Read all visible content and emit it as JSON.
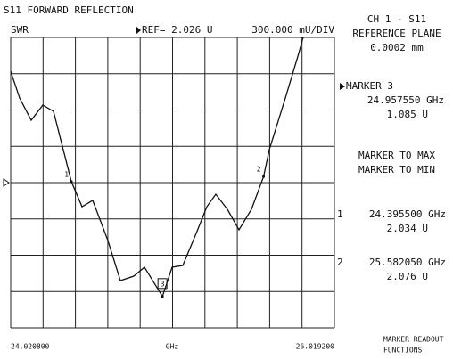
{
  "chart_data": {
    "type": "line",
    "title": "S11 FORWARD REFLECTION",
    "y_label": "SWR",
    "ref": {
      "value": 2.026,
      "label": "REF= 2.026 U"
    },
    "scale_label": "300.000 mU/DIV",
    "x_unit": "GHz",
    "xlim": [
      24.0208,
      26.0192
    ],
    "xticks": [
      {
        "value": 24.0208,
        "label": "24.020800"
      },
      {
        "value": 26.0192,
        "label": "26.019200"
      }
    ],
    "xgrid": [
      24.0208,
      24.22064,
      24.42048,
      24.62032,
      24.82016,
      25.02,
      25.21984,
      25.41968,
      25.61952,
      25.81936,
      26.0192
    ],
    "ylim": [
      0.826,
      3.226
    ],
    "yticks": [
      0.826,
      1.126,
      1.426,
      1.726,
      2.026,
      2.326,
      2.626,
      2.926,
      3.226
    ],
    "grid": true,
    "series": [
      {
        "name": "S11",
        "color": "#111111",
        "x": [
          24.0208,
          24.0759,
          24.1474,
          24.219,
          24.285,
          24.3955,
          24.4612,
          24.5272,
          24.6209,
          24.6979,
          24.7805,
          24.8466,
          24.95755,
          25.0173,
          25.0833,
          25.1659,
          25.232,
          25.287,
          25.3586,
          25.4301,
          25.5072,
          25.58205,
          25.6173,
          25.7164,
          25.799,
          25.8265
        ],
        "values": [
          2.946,
          2.725,
          2.541,
          2.667,
          2.615,
          2.034,
          1.827,
          1.879,
          1.547,
          1.216,
          1.253,
          1.327,
          1.085,
          1.327,
          1.341,
          1.606,
          1.827,
          1.93,
          1.805,
          1.636,
          1.805,
          2.076,
          2.298,
          2.725,
          3.094,
          3.226
        ]
      }
    ],
    "markers": [
      {
        "name": "1",
        "x": 24.3955,
        "y": 2.034,
        "x_label": "24.395500 GHz",
        "y_label": "2.034 U"
      },
      {
        "name": "2",
        "x": 25.58205,
        "y": 2.076,
        "x_label": "25.582050 GHz",
        "y_label": "2.076 U"
      },
      {
        "name": "3",
        "x": 24.95755,
        "y": 1.085,
        "x_label": "24.957550 GHz",
        "y_label": "1.085 U"
      }
    ],
    "channel": "CH 1 - S11",
    "reference_plane_label": "REFERENCE PLANE",
    "reference_plane": "0.0002 mm",
    "active_marker": "MARKER 3",
    "menu": [
      "MARKER TO MAX",
      "MARKER TO MIN"
    ],
    "footer": [
      "MARKER READOUT",
      "FUNCTIONS"
    ]
  }
}
